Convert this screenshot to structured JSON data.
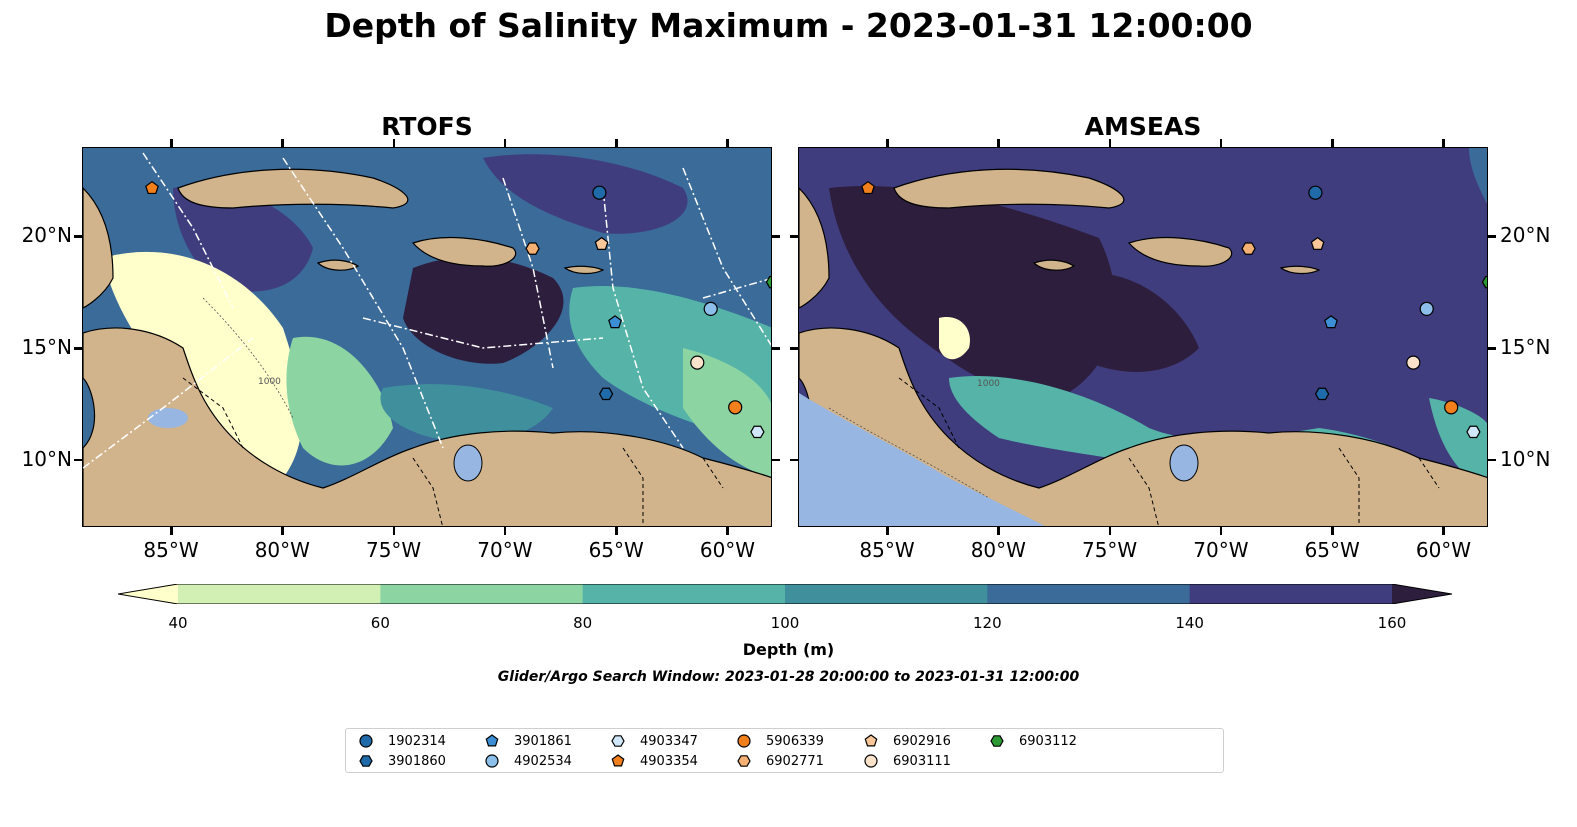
{
  "title": "Depth of Salinity Maximum - 2023-01-31 12:00:00",
  "panels": [
    {
      "title": "RTOFS"
    },
    {
      "title": "AMSEAS"
    }
  ],
  "lon_labels": [
    "85°W",
    "80°W",
    "75°W",
    "70°W",
    "65°W",
    "60°W"
  ],
  "lat_labels": [
    "20°N",
    "15°N",
    "10°N"
  ],
  "contour_label": "1000",
  "colors": {
    "land": "#d2b48c",
    "lake": "#97b6e1",
    "levels": [
      "#ffffcc",
      "#d3f0b4",
      "#8dd4a3",
      "#55b3a8",
      "#3f8f9d",
      "#3a6b99",
      "#403d7e",
      "#2d1e3e"
    ]
  },
  "colorbar": {
    "ticks": [
      "40",
      "60",
      "80",
      "100",
      "120",
      "140",
      "160",
      "180"
    ],
    "extend": "both",
    "label": "Depth (m)"
  },
  "search_window": "Glider/Argo Search Window: 2023-01-28 20:00:00 to 2023-01-31 12:00:00",
  "legend": [
    {
      "id": "1902314",
      "marker": "circle",
      "color": "#1f6aa8"
    },
    {
      "id": "3901860",
      "marker": "hexagon",
      "color": "#1f6aa8"
    },
    {
      "id": "3901861",
      "marker": "pentagon",
      "color": "#3c8fd4"
    },
    {
      "id": "4902534",
      "marker": "circle",
      "color": "#8cc0eb"
    },
    {
      "id": "4903347",
      "marker": "hexagon",
      "color": "#cfe7f8"
    },
    {
      "id": "4903354",
      "marker": "pentagon",
      "color": "#f07f1c"
    },
    {
      "id": "5906339",
      "marker": "circle",
      "color": "#f07f1c"
    },
    {
      "id": "6902771",
      "marker": "hexagon",
      "color": "#f5b073"
    },
    {
      "id": "6902916",
      "marker": "pentagon",
      "color": "#f9c79a"
    },
    {
      "id": "6903111",
      "marker": "circle",
      "color": "#fbe2ca"
    },
    {
      "id": "6903112",
      "marker": "hexagon",
      "color": "#2c9b33"
    }
  ],
  "floats": [
    {
      "id": "1902314",
      "lon": -65.8,
      "lat": 22.0
    },
    {
      "id": "3901860",
      "lon": -65.5,
      "lat": 13.0
    },
    {
      "id": "3901861",
      "lon": -65.1,
      "lat": 16.2
    },
    {
      "id": "4902534",
      "lon": -60.8,
      "lat": 16.8
    },
    {
      "id": "4903347",
      "lon": -58.7,
      "lat": 11.3
    },
    {
      "id": "4903354",
      "lon": -85.9,
      "lat": 22.2
    },
    {
      "id": "5906339",
      "lon": -59.7,
      "lat": 12.4
    },
    {
      "id": "6902771",
      "lon": -68.8,
      "lat": 19.5
    },
    {
      "id": "6902916",
      "lon": -65.7,
      "lat": 19.7
    },
    {
      "id": "6903111",
      "lon": -61.4,
      "lat": 14.4
    },
    {
      "id": "6903112",
      "lon": -58.0,
      "lat": 18.0
    }
  ],
  "extent": {
    "lon": [
      -89,
      -58
    ],
    "lat": [
      7,
      24
    ]
  }
}
